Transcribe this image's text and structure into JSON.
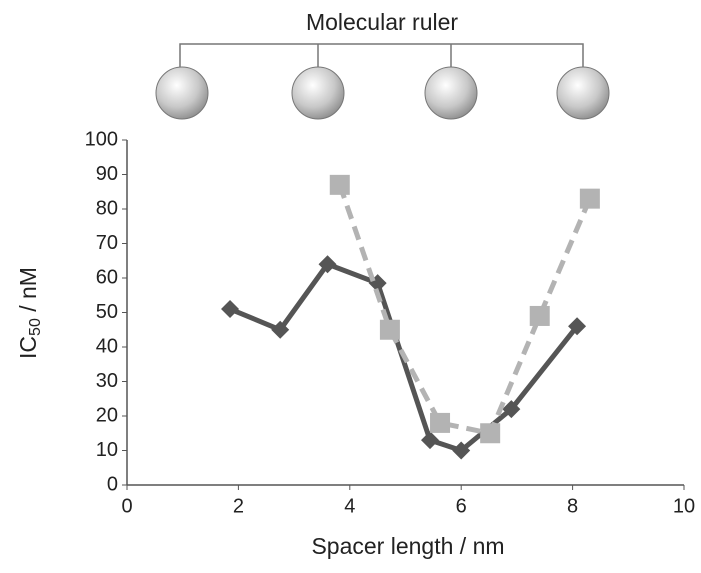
{
  "chart_data": {
    "type": "line",
    "title": "Molecular ruler",
    "x_label": "Spacer length / nm",
    "y_label": [
      "IC",
      "50",
      " / nM"
    ],
    "xlim": [
      0,
      10
    ],
    "xticks": [
      0,
      2,
      4,
      6,
      8,
      10
    ],
    "ylim": [
      0,
      100
    ],
    "yticks": [
      0,
      10,
      20,
      30,
      40,
      50,
      60,
      70,
      80,
      90,
      100
    ],
    "grid": false,
    "series": [
      {
        "color": "#555555",
        "linestyle": "solid",
        "marker": "diamond",
        "x": [
          1.85,
          2.75,
          3.6,
          4.5,
          5.44,
          6.0,
          6.9,
          8.08
        ],
        "values": [
          51,
          45,
          64,
          58.5,
          13,
          10,
          22,
          46
        ]
      },
      {
        "color": "#b3b3b3",
        "linestyle": "dashed",
        "marker": "square",
        "x": [
          3.82,
          4.72,
          5.62,
          6.52,
          7.41,
          8.31
        ],
        "values": [
          87,
          45,
          18,
          15,
          49,
          83
        ]
      }
    ]
  }
}
